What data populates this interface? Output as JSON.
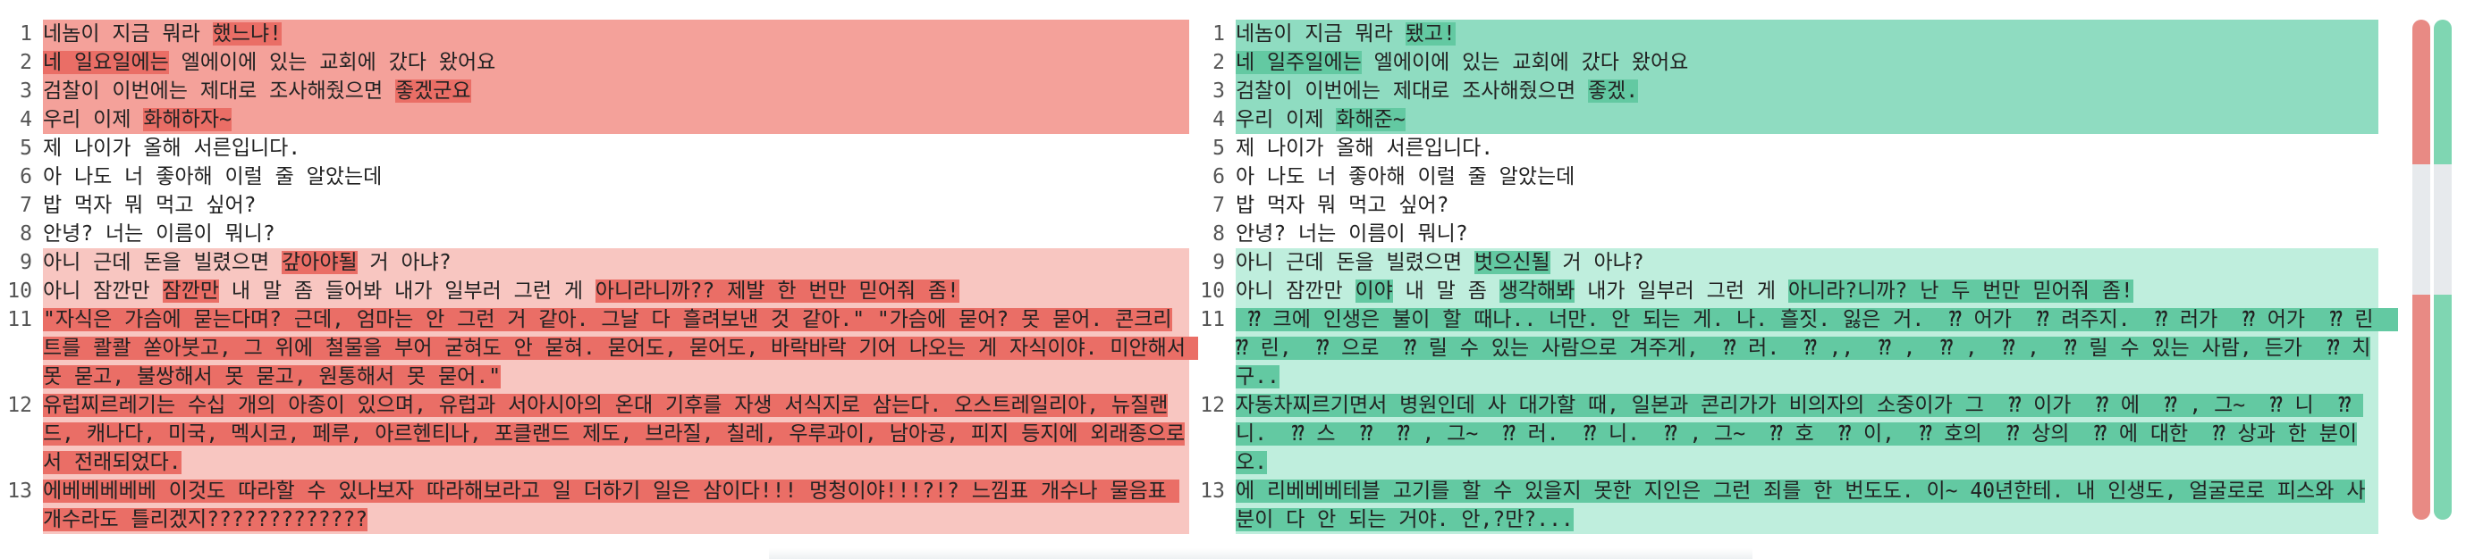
{
  "left": {
    "lines": [
      {
        "num": "1",
        "bg": "chg-strong",
        "segs": [
          {
            "t": "네놈이 지금 뭐라 "
          },
          {
            "t": "했느냐!",
            "hl": true
          }
        ]
      },
      {
        "num": "2",
        "bg": "chg-strong",
        "segs": [
          {
            "t": "네 일요일에는",
            "hl": true
          },
          {
            "t": " 엘에이에 있는 교회에 갔다 왔어요"
          }
        ]
      },
      {
        "num": "3",
        "bg": "chg-strong",
        "segs": [
          {
            "t": "검찰이 이번에는 제대로 조사해줬으면 "
          },
          {
            "t": "좋겠군요",
            "hl": true
          }
        ]
      },
      {
        "num": "4",
        "bg": "chg-strong",
        "segs": [
          {
            "t": "우리 이제 "
          },
          {
            "t": "화해하자~",
            "hl": true
          }
        ]
      },
      {
        "num": "5",
        "bg": "nochg",
        "segs": [
          {
            "t": "제 나이가 올해 서른입니다."
          }
        ]
      },
      {
        "num": "6",
        "bg": "nochg",
        "segs": [
          {
            "t": "아 나도 너 좋아해 이럴 줄 알았는데"
          }
        ]
      },
      {
        "num": "7",
        "bg": "nochg",
        "segs": [
          {
            "t": "밥 먹자 뭐 먹고 싶어?"
          }
        ]
      },
      {
        "num": "8",
        "bg": "nochg",
        "segs": [
          {
            "t": "안녕? 너는 이름이 뭐니?"
          }
        ]
      },
      {
        "num": "9",
        "bg": "chg-light",
        "segs": [
          {
            "t": "아니 근데 돈을 빌렸으면 "
          },
          {
            "t": "갚아야될",
            "hl": true
          },
          {
            "t": " 거 아냐?"
          }
        ]
      },
      {
        "num": "10",
        "bg": "chg-light",
        "segs": [
          {
            "t": "아니 잠깐만 "
          },
          {
            "t": "잠깐만",
            "hl": true
          },
          {
            "t": " 내 말 좀 들어봐 내가 일부러 그런 게 "
          },
          {
            "t": "아니라니까?? 제발 한 번만 믿어줘 좀!",
            "hl": true
          }
        ]
      },
      {
        "num": "11",
        "bg": "chg-light",
        "segs": [
          {
            "t": "\"자식은 가슴에 묻는다며? 근데, 엄마는 안 그런 거 같아. 그날 다 흘려보낸 것 같아.\" \"가슴에 묻어? 못 묻어. 콘크리트를 콸콸 쏟아붓고, 그 위에 철물을 부어 굳혀도 안 묻혀. 묻어도, 묻어도, 바락바락 기어 나오는 게 자식이야. 미안해서 못 묻고, 불쌍해서 못 묻고, 원통해서 못 묻어.\"",
            "hl": true
          }
        ]
      },
      {
        "num": "12",
        "bg": "chg-light",
        "segs": [
          {
            "t": "유럽찌르레기는 수십 개의 아종이 있으며, 유럽과 서아시아의 온대 기후를 자생 서식지로 삼는다. 오스트레일리아, 뉴질랜드, 캐나다, 미국, 멕시코, 페루, 아르헨티나, 포클랜드 제도, 브라질, 칠레, 우루과이, 남아공, 피지 등지에 외래종으로서 전래되었다.",
            "hl": true
          }
        ]
      },
      {
        "num": "13",
        "bg": "chg-light",
        "segs": [
          {
            "t": "에베베베베베 이것도 따라할 수 있나보자 따라해보라고 일 더하기 일은 삼이다!!! 멍청이야!!!?!? 느낌표 개수나 물음표 개수라도 틀리겠지?????????????",
            "hl": true
          }
        ]
      }
    ]
  },
  "right": {
    "lines": [
      {
        "num": "1",
        "bg": "chg-strong",
        "segs": [
          {
            "t": "네놈이 지금 뭐라 "
          },
          {
            "t": "됐고!",
            "hl": true
          }
        ]
      },
      {
        "num": "2",
        "bg": "chg-strong",
        "segs": [
          {
            "t": "네 일주일에는",
            "hl": true
          },
          {
            "t": " 엘에이에 있는 교회에 갔다 왔어요"
          }
        ]
      },
      {
        "num": "3",
        "bg": "chg-strong",
        "segs": [
          {
            "t": "검찰이 이번에는 제대로 조사해줬으면 "
          },
          {
            "t": "좋겠.",
            "hl": true
          }
        ]
      },
      {
        "num": "4",
        "bg": "chg-strong",
        "segs": [
          {
            "t": "우리 이제 "
          },
          {
            "t": "화해준~",
            "hl": true
          }
        ]
      },
      {
        "num": "5",
        "bg": "nochg",
        "segs": [
          {
            "t": "제 나이가 올해 서른입니다."
          }
        ]
      },
      {
        "num": "6",
        "bg": "nochg",
        "segs": [
          {
            "t": "아 나도 너 좋아해 이럴 줄 알았는데"
          }
        ]
      },
      {
        "num": "7",
        "bg": "nochg",
        "segs": [
          {
            "t": "밥 먹자 뭐 먹고 싶어?"
          }
        ]
      },
      {
        "num": "8",
        "bg": "nochg",
        "segs": [
          {
            "t": "안녕? 너는 이름이 뭐니?"
          }
        ]
      },
      {
        "num": "9",
        "bg": "chg-light",
        "segs": [
          {
            "t": "아니 근데 돈을 빌렸으면 "
          },
          {
            "t": "벗으신될",
            "hl": true
          },
          {
            "t": " 거 아냐?"
          }
        ]
      },
      {
        "num": "10",
        "bg": "chg-light",
        "segs": [
          {
            "t": "아니 잠깐만 "
          },
          {
            "t": "이야",
            "hl": true
          },
          {
            "t": " 내 말 좀 "
          },
          {
            "t": "생각해봐",
            "hl": true
          },
          {
            "t": " 내가 일부러 그런 게 "
          },
          {
            "t": "아니라?니까? 난 두 번만 믿어줘 좀!",
            "hl": true
          }
        ]
      },
      {
        "num": "11",
        "bg": "chg-light",
        "segs": [
          {
            "t": " ⁇ 크에 인생은 불이 할 때나.. 너만. 안 되는 게. 나. 흘짓. 잃은 거.  ⁇ 어가  ⁇ 려주지.  ⁇ 러가  ⁇ 어가  ⁇ 린  ⁇ 린,  ⁇ 으로  ⁇ 릴 수 있는 사람으로 겨주게,  ⁇ 러.  ⁇ ,,  ⁇ ,  ⁇ ,  ⁇ ,  ⁇ 릴 수 있는 사람, 든가  ⁇ 치구..",
            "hl": true
          }
        ]
      },
      {
        "num": "12",
        "bg": "chg-light",
        "segs": [
          {
            "t": "자동차찌르기면서 병원인데 사 대가할 때, 일본과 콘리가가 비의자의 소중이가 그  ⁇ 이가  ⁇ 에  ⁇ , 그~  ⁇ 니  ⁇ 니.  ⁇ 스  ⁇  ⁇ , 그~  ⁇ 러.  ⁇ 니.  ⁇ , 그~  ⁇ 호  ⁇ 이,  ⁇ 호의  ⁇ 상의  ⁇ 에 대한  ⁇ 상과 한 분이오.",
            "hl": true
          }
        ]
      },
      {
        "num": "13",
        "bg": "chg-light",
        "segs": [
          {
            "t": "에 리베베베테블 고기를 할 수 있을지 못한 지인은 그런 죄를 한 번도도. 이~ 40년한테. 내 인생도, 얼굴로로 피스와 사분이 다 안 되는 거야. 안,?만?...",
            "hl": true
          }
        ]
      }
    ]
  },
  "overview": {
    "left_color": "#e88a84",
    "right_color": "#7fd6b2",
    "segments": [
      {
        "start": 0.0,
        "end": 0.29,
        "changed": true
      },
      {
        "start": 0.29,
        "end": 0.55,
        "changed": false
      },
      {
        "start": 0.55,
        "end": 1.0,
        "changed": true
      }
    ]
  }
}
